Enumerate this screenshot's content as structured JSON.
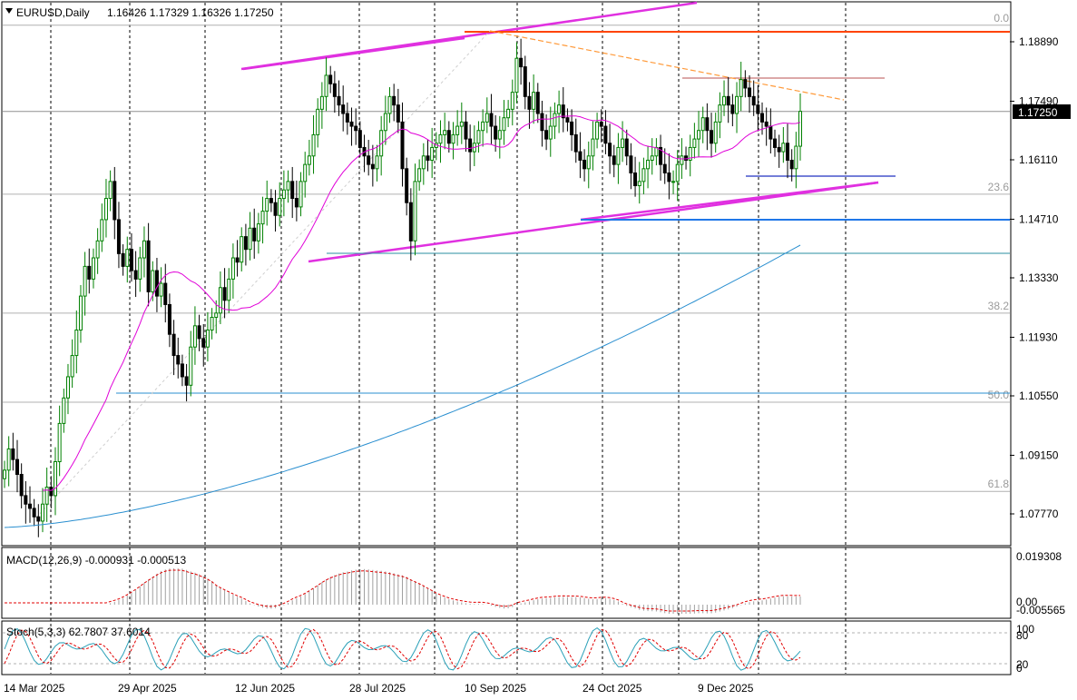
{
  "header": {
    "symbol": "EURUSD,Daily",
    "ohlc": "1.16426 1.17329 1.16326 1.17250"
  },
  "colors": {
    "bull": "#008000",
    "bear": "#000000",
    "ma_fast": "#e000d8",
    "ma_slow": "#2a8fd0",
    "channel": "#e030e0",
    "resistance": "#ff4400",
    "support": "#1f77e8",
    "fib_line": "#b0b0b0",
    "trend_dash": "#ff9a3a",
    "grid": "#000000"
  },
  "price_axis": {
    "ticks": [
      "1.18890",
      "1.17490",
      "1.16110",
      "1.14710",
      "1.13330",
      "1.11930",
      "1.10550",
      "1.09150",
      "1.07770"
    ],
    "last_price": "1.17250",
    "range": [
      1.069,
      1.197
    ]
  },
  "fibonacci": [
    {
      "label": "0.0",
      "price": 1.1928
    },
    {
      "label": "23.6",
      "price": 1.153
    },
    {
      "label": "38.2",
      "price": 1.125
    },
    {
      "label": "50.0",
      "price": 1.104
    },
    {
      "label": "61.8",
      "price": 1.083
    }
  ],
  "time_axis": {
    "labels": [
      "14 Mar 2025",
      "29 Apr 2025",
      "12 Jun 2025",
      "28 Jul 2025",
      "10 Sep 2025",
      "24 Oct 2025",
      "9 Dec 2025"
    ]
  },
  "macd": {
    "title": "MACD(12,26,9) -0.000931 -0.000513",
    "ticks": [
      "0.019308",
      "0.00",
      "-0.005565"
    ]
  },
  "stoch": {
    "title": "Stoch(5,3,3) 62.7807 37.6014",
    "ticks": [
      "100",
      "80",
      "20",
      "0"
    ]
  },
  "chart_data": {
    "type": "candlestick",
    "symbol": "EURUSD",
    "timeframe": "Daily",
    "last": {
      "open": 1.16426,
      "high": 1.17329,
      "low": 1.16326,
      "close": 1.1725
    },
    "series": [
      {
        "start": 1.088,
        "points": [
          1.088,
          1.093,
          1.0905,
          1.087,
          1.082,
          1.08,
          1.079,
          1.077,
          1.076,
          1.08,
          1.084,
          1.082,
          1.09,
          1.099,
          1.105,
          1.11,
          1.115,
          1.121,
          1.129,
          1.136,
          1.133,
          1.138,
          1.142,
          1.147,
          1.152,
          1.156,
          1.147,
          1.139,
          1.136,
          1.14,
          1.135,
          1.133,
          1.138,
          1.142,
          1.13,
          1.135,
          1.129,
          1.132,
          1.127,
          1.12,
          1.115,
          1.113,
          1.11,
          1.108,
          1.117,
          1.122,
          1.119,
          1.117,
          1.121,
          1.124,
          1.125,
          1.131,
          1.128,
          1.133,
          1.138,
          1.137,
          1.143,
          1.14,
          1.145,
          1.142,
          1.146,
          1.149,
          1.152,
          1.151,
          1.148,
          1.152,
          1.154,
          1.156,
          1.152,
          1.15,
          1.156,
          1.16,
          1.162,
          1.167,
          1.173,
          1.176,
          1.181,
          1.179,
          1.176,
          1.174,
          1.172,
          1.17,
          1.169,
          1.168,
          1.164,
          1.162,
          1.16,
          1.159,
          1.162,
          1.168,
          1.172,
          1.176,
          1.174,
          1.17,
          1.159,
          1.151,
          1.142,
          1.156,
          1.159,
          1.162,
          1.161,
          1.164,
          1.165,
          1.167,
          1.168,
          1.165,
          1.167,
          1.169,
          1.17,
          1.166,
          1.163,
          1.165,
          1.168,
          1.17,
          1.172,
          1.169,
          1.166,
          1.168,
          1.171,
          1.173,
          1.177,
          1.185,
          1.183,
          1.176,
          1.173,
          1.177,
          1.172,
          1.168,
          1.166,
          1.169,
          1.172,
          1.174,
          1.171,
          1.17,
          1.167,
          1.163,
          1.161,
          1.159,
          1.162,
          1.166,
          1.17,
          1.169,
          1.165,
          1.162,
          1.16,
          1.164,
          1.166,
          1.162,
          1.158,
          1.155,
          1.156,
          1.159,
          1.161,
          1.162,
          1.164,
          1.16,
          1.158,
          1.156,
          1.156,
          1.16,
          1.162,
          1.161,
          1.164,
          1.166,
          1.168,
          1.171,
          1.168,
          1.165,
          1.17,
          1.174,
          1.176,
          1.174,
          1.172,
          1.176,
          1.18,
          1.178,
          1.176,
          1.174,
          1.172,
          1.17,
          1.169,
          1.166,
          1.164,
          1.163,
          1.165,
          1.161,
          1.159,
          1.1643,
          1.1725
        ]
      }
    ]
  }
}
